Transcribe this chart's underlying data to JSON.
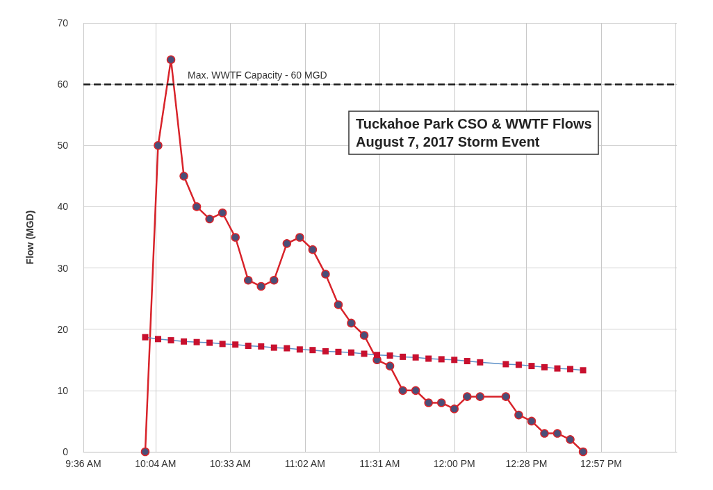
{
  "chart_data": {
    "type": "line",
    "title": "Tuckahoe Park CSO & WWTF Flows",
    "subtitle": "August 7, 2017 Storm Event",
    "ylabel": "Flow (MGD)",
    "xlim": [
      9.6,
      13.44
    ],
    "xticks": [
      {
        "value": 9.6,
        "label": "9:36 AM"
      },
      {
        "value": 10.0667,
        "label": "10:04 AM"
      },
      {
        "value": 10.55,
        "label": "10:33 AM"
      },
      {
        "value": 11.0333,
        "label": "11:02 AM"
      },
      {
        "value": 11.5167,
        "label": "11:31 AM"
      },
      {
        "value": 12.0,
        "label": "12:00 PM"
      },
      {
        "value": 12.4667,
        "label": "12:28 PM"
      },
      {
        "value": 12.95,
        "label": "12:57 PM"
      },
      {
        "value": 13.4333,
        "label": null
      }
    ],
    "ylim": [
      0,
      70
    ],
    "yticks": [
      0,
      10,
      20,
      30,
      40,
      50,
      60,
      70
    ],
    "grid": true,
    "line_style": "solid",
    "ref_lines": [
      {
        "axis": "y",
        "value": 60,
        "label": "Max. WWTF Capacity - 60 MGD",
        "color": "#1a1a1a",
        "line_style": "dashed"
      }
    ],
    "series": [
      {
        "color": "#d8232a",
        "marker": "circle",
        "x": [
          10.0,
          10.0833,
          10.1667,
          10.25,
          10.3333,
          10.4167,
          10.5,
          10.5833,
          10.6667,
          10.75,
          10.8333,
          10.9167,
          11.0,
          11.0833,
          11.1667,
          11.25,
          11.3333,
          11.4167,
          11.5,
          11.5833,
          11.6667,
          11.75,
          11.8333,
          11.9167,
          12.0,
          12.0833,
          12.1667,
          12.3333,
          12.4167,
          12.5,
          12.5833,
          12.6667,
          12.75,
          12.8333
        ],
        "values": [
          0,
          50,
          64,
          45,
          40,
          38,
          39,
          35,
          28,
          27,
          28,
          34,
          35,
          33,
          29,
          24,
          21,
          19,
          15,
          14,
          10,
          10,
          8,
          8,
          7,
          9,
          9,
          9,
          6,
          5,
          3,
          3,
          2,
          0
        ]
      },
      {
        "color": "#c8102e",
        "marker": "square",
        "x": [
          10.0,
          10.0833,
          10.1667,
          10.25,
          10.3333,
          10.4167,
          10.5,
          10.5833,
          10.6667,
          10.75,
          10.8333,
          10.9167,
          11.0,
          11.0833,
          11.1667,
          11.25,
          11.3333,
          11.4167,
          11.5,
          11.5833,
          11.6667,
          11.75,
          11.8333,
          11.9167,
          12.0,
          12.0833,
          12.1667,
          12.25,
          12.3333,
          12.4167,
          12.5,
          12.5833,
          12.6667,
          12.75,
          12.8333
        ],
        "values": [
          18.7,
          18.4,
          18.2,
          18.0,
          17.9,
          17.8,
          17.6,
          17.5,
          17.3,
          17.2,
          17.0,
          16.9,
          16.7,
          16.6,
          16.4,
          16.3,
          16.2,
          16.0,
          15.8,
          15.7,
          15.5,
          15.4,
          15.2,
          15.1,
          15.0,
          14.8,
          14.6,
          null,
          14.3,
          14.2,
          14.0,
          13.8,
          13.6,
          13.5,
          13.3
        ]
      }
    ]
  }
}
